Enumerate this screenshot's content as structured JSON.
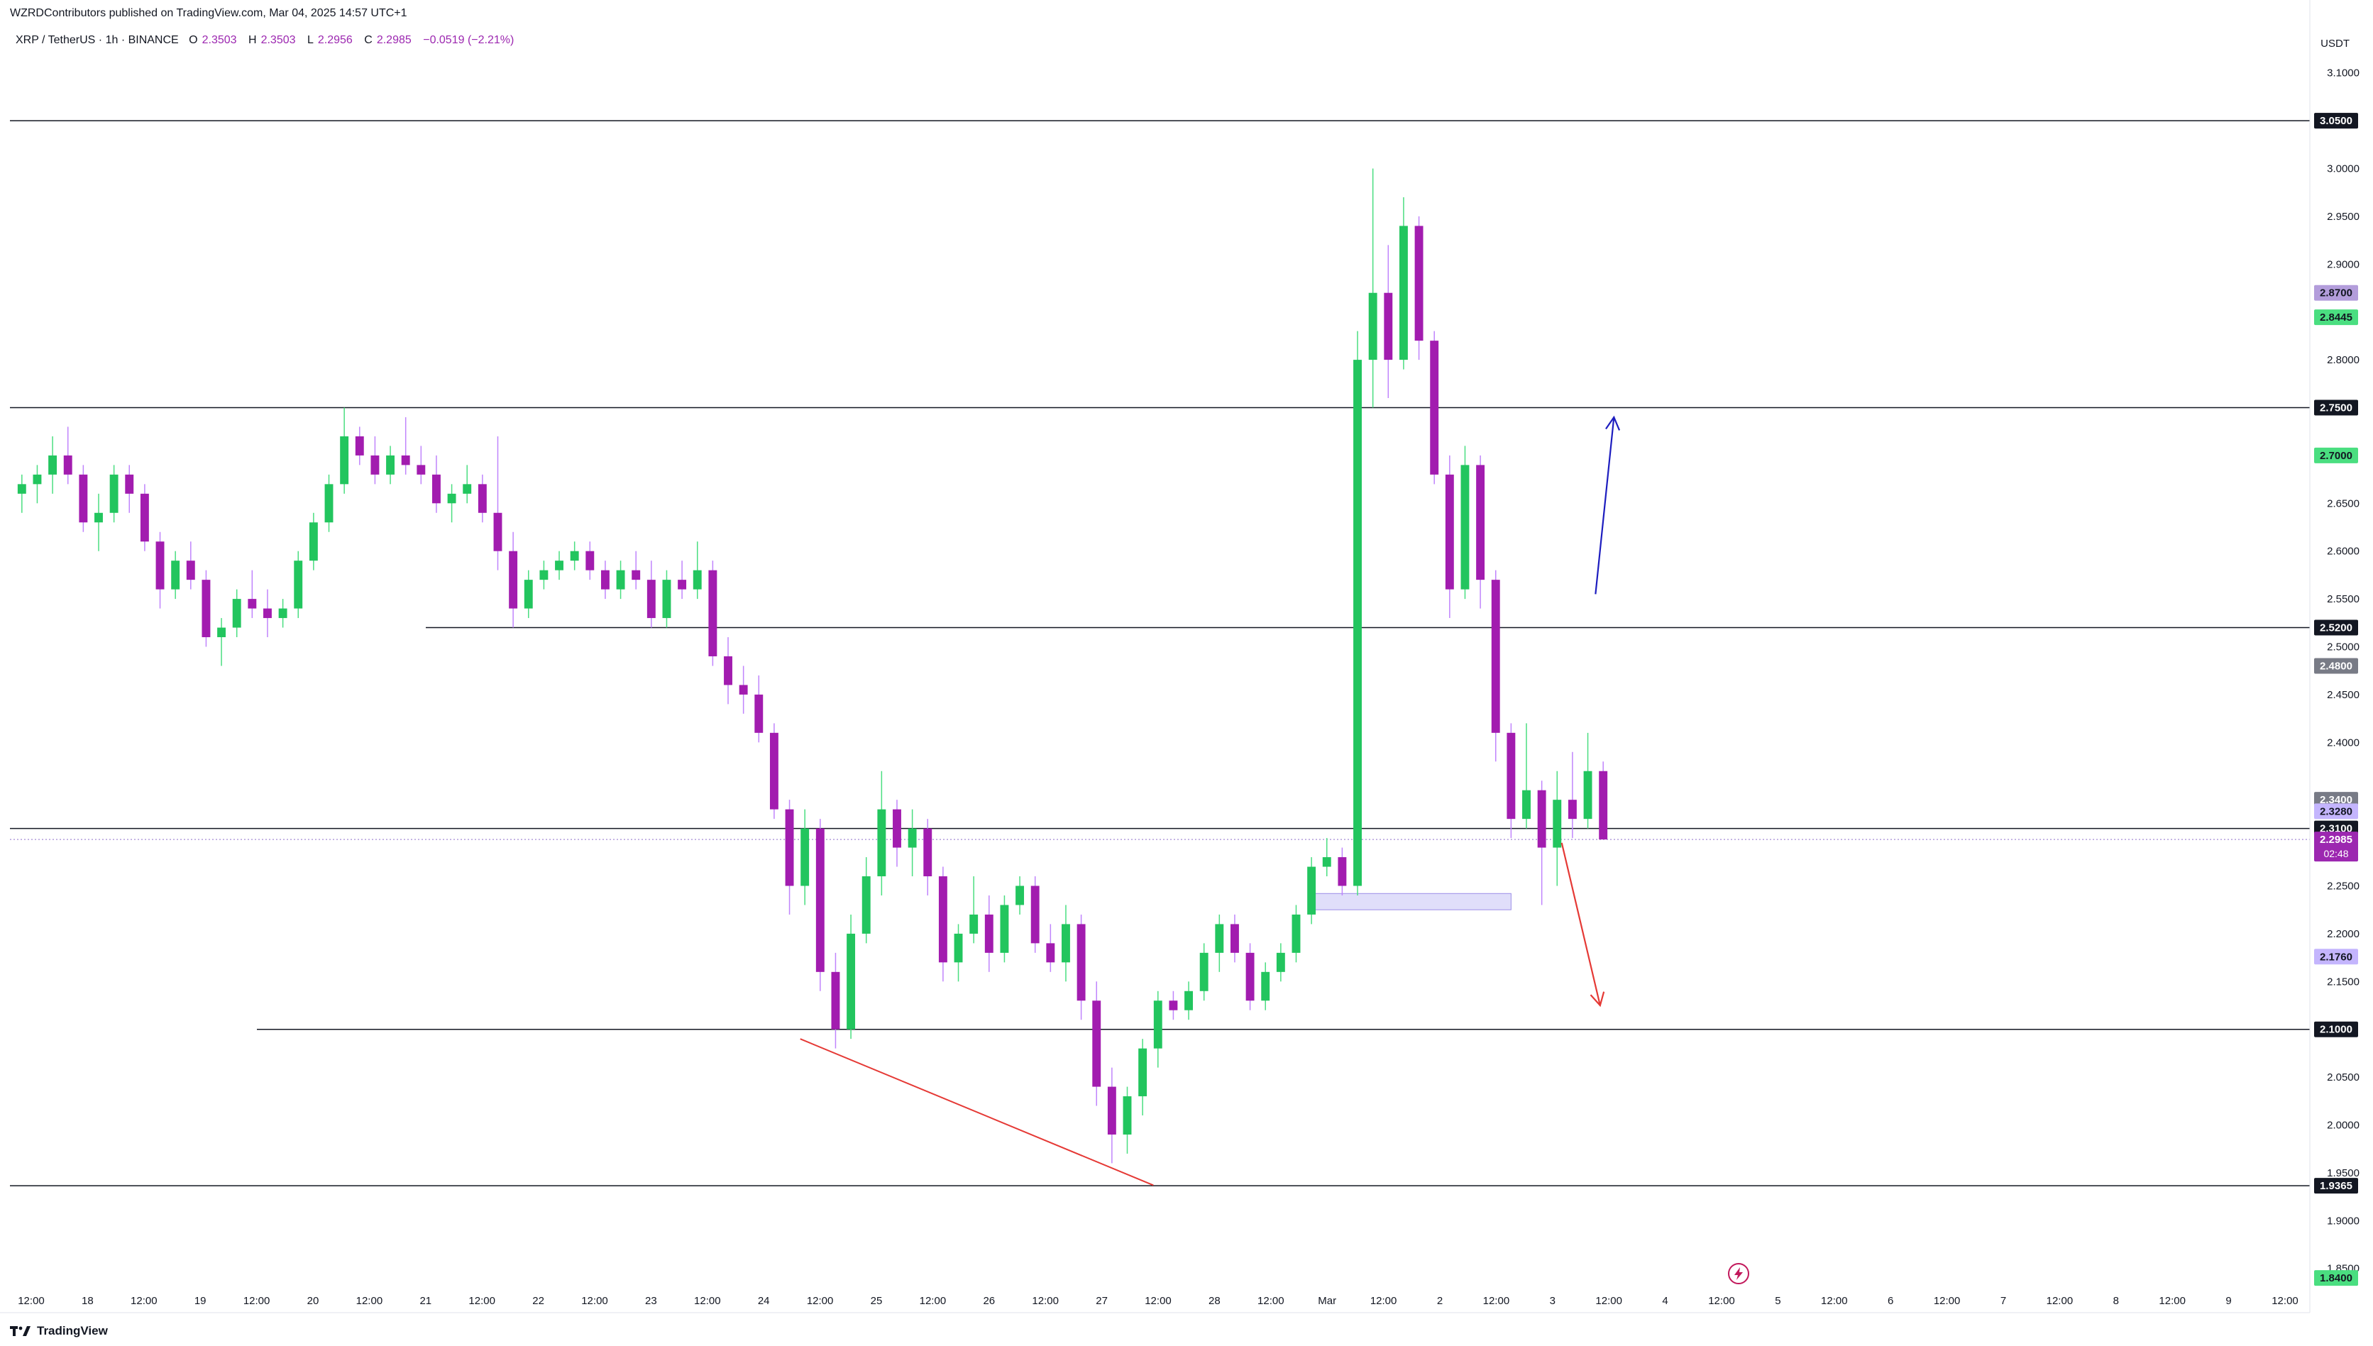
{
  "header": {
    "published": "WZRDContributors published on TradingView.com, Mar 04, 2025 14:57 UTC+1",
    "symbol": "XRP / TetherUS · 1h · BINANCE",
    "o_label": "O",
    "o_value": "2.3503",
    "h_label": "H",
    "h_value": "2.3503",
    "l_label": "L",
    "l_value": "2.2956",
    "c_label": "C",
    "c_value": "2.2985",
    "change": "−0.0519 (−2.21%)"
  },
  "footer": {
    "brand": "TradingView",
    "logo_icon": "tradingview-logo-icon"
  },
  "colors": {
    "up": "#22c55e",
    "down": "#a21caf",
    "wick": "#c084fc",
    "level_line": "#131722",
    "arrow_up": "#1d1dbf",
    "arrow_down": "#e53935",
    "trendline": "#e53935",
    "zone": "#c7c3f5"
  },
  "chart_data": {
    "type": "candlestick",
    "timeframe": "1h",
    "currency": "USDT",
    "ylim": [
      1.84,
      3.13
    ],
    "x_ticks": [
      "12:00",
      "18",
      "12:00",
      "19",
      "12:00",
      "20",
      "12:00",
      "21",
      "12:00",
      "22",
      "12:00",
      "23",
      "12:00",
      "24",
      "12:00",
      "25",
      "12:00",
      "26",
      "12:00",
      "27",
      "12:00",
      "28",
      "12:00",
      "Mar",
      "12:00",
      "2",
      "12:00",
      "3",
      "12:00",
      "4",
      "12:00",
      "5",
      "12:00",
      "6",
      "12:00",
      "7",
      "12:00",
      "8",
      "12:00",
      "9",
      "12:00"
    ],
    "y_ticks": [
      "3.1000",
      "3.0000",
      "2.9500",
      "2.9000",
      "2.8000",
      "2.6500",
      "2.6000",
      "2.5500",
      "2.5000",
      "2.4500",
      "2.4000",
      "2.2500",
      "2.2000",
      "2.1500",
      "2.0500",
      "2.0000",
      "1.9500",
      "1.9000",
      "1.8500"
    ],
    "horizontal_levels": [
      {
        "value": 3.05,
        "label": "3.0500"
      },
      {
        "value": 2.75,
        "label": "2.7500"
      },
      {
        "value": 2.52,
        "label": "2.5200"
      },
      {
        "value": 2.31,
        "label": "2.3100"
      },
      {
        "value": 2.1,
        "label": "2.1000"
      },
      {
        "value": 1.9365,
        "label": "1.9365"
      }
    ],
    "price_badges": [
      {
        "value": 3.05,
        "label": "3.0500",
        "color": "#787b86",
        "text_color": "#ffffff"
      },
      {
        "value": 2.87,
        "label": "2.8700",
        "color": "#b39ddb",
        "text_color": "#131722"
      },
      {
        "value": 2.8445,
        "label": "2.8445",
        "color": "#4ade80",
        "text_color": "#131722"
      },
      {
        "value": 2.7,
        "label": "2.7000",
        "color": "#4ade80",
        "text_color": "#131722"
      },
      {
        "value": 2.48,
        "label": "2.4800",
        "color": "#787b86",
        "text_color": "#ffffff"
      },
      {
        "value": 2.34,
        "label": "2.3400",
        "color": "#787b86",
        "text_color": "#ffffff"
      },
      {
        "value": 2.328,
        "label": "2.3280",
        "color": "#c4b5fd",
        "text_color": "#131722"
      },
      {
        "value": 2.176,
        "label": "2.1760",
        "color": "#c4b5fd",
        "text_color": "#131722"
      },
      {
        "value": 1.84,
        "label": "1.8400",
        "color": "#4ade80",
        "text_color": "#131722"
      }
    ],
    "last_price": {
      "value": 2.2985,
      "label": "2.2985",
      "countdown": "02:48",
      "color": "#9c27b0"
    },
    "candles": [
      [
        2.66,
        2.68,
        2.64,
        2.67
      ],
      [
        2.67,
        2.69,
        2.65,
        2.68
      ],
      [
        2.68,
        2.72,
        2.66,
        2.7
      ],
      [
        2.7,
        2.73,
        2.67,
        2.68
      ],
      [
        2.68,
        2.69,
        2.62,
        2.63
      ],
      [
        2.63,
        2.66,
        2.6,
        2.64
      ],
      [
        2.64,
        2.69,
        2.63,
        2.68
      ],
      [
        2.68,
        2.69,
        2.64,
        2.66
      ],
      [
        2.66,
        2.67,
        2.6,
        2.61
      ],
      [
        2.61,
        2.62,
        2.54,
        2.56
      ],
      [
        2.56,
        2.6,
        2.55,
        2.59
      ],
      [
        2.59,
        2.61,
        2.56,
        2.57
      ],
      [
        2.57,
        2.58,
        2.5,
        2.51
      ],
      [
        2.51,
        2.53,
        2.48,
        2.52
      ],
      [
        2.52,
        2.56,
        2.51,
        2.55
      ],
      [
        2.55,
        2.58,
        2.53,
        2.54
      ],
      [
        2.54,
        2.56,
        2.51,
        2.53
      ],
      [
        2.53,
        2.55,
        2.52,
        2.54
      ],
      [
        2.54,
        2.6,
        2.53,
        2.59
      ],
      [
        2.59,
        2.64,
        2.58,
        2.63
      ],
      [
        2.63,
        2.68,
        2.62,
        2.67
      ],
      [
        2.67,
        2.75,
        2.66,
        2.72
      ],
      [
        2.72,
        2.73,
        2.69,
        2.7
      ],
      [
        2.7,
        2.72,
        2.67,
        2.68
      ],
      [
        2.68,
        2.71,
        2.67,
        2.7
      ],
      [
        2.7,
        2.74,
        2.68,
        2.69
      ],
      [
        2.69,
        2.71,
        2.67,
        2.68
      ],
      [
        2.68,
        2.7,
        2.64,
        2.65
      ],
      [
        2.65,
        2.67,
        2.63,
        2.66
      ],
      [
        2.66,
        2.69,
        2.65,
        2.67
      ],
      [
        2.67,
        2.68,
        2.63,
        2.64
      ],
      [
        2.64,
        2.72,
        2.58,
        2.6
      ],
      [
        2.6,
        2.62,
        2.52,
        2.54
      ],
      [
        2.54,
        2.58,
        2.53,
        2.57
      ],
      [
        2.57,
        2.59,
        2.56,
        2.58
      ],
      [
        2.58,
        2.6,
        2.57,
        2.59
      ],
      [
        2.59,
        2.61,
        2.58,
        2.6
      ],
      [
        2.6,
        2.61,
        2.57,
        2.58
      ],
      [
        2.58,
        2.59,
        2.55,
        2.56
      ],
      [
        2.56,
        2.59,
        2.55,
        2.58
      ],
      [
        2.58,
        2.6,
        2.56,
        2.57
      ],
      [
        2.57,
        2.59,
        2.52,
        2.53
      ],
      [
        2.53,
        2.58,
        2.52,
        2.57
      ],
      [
        2.57,
        2.59,
        2.55,
        2.56
      ],
      [
        2.56,
        2.61,
        2.55,
        2.58
      ],
      [
        2.58,
        2.59,
        2.48,
        2.49
      ],
      [
        2.49,
        2.51,
        2.44,
        2.46
      ],
      [
        2.46,
        2.48,
        2.43,
        2.45
      ],
      [
        2.45,
        2.47,
        2.4,
        2.41
      ],
      [
        2.41,
        2.42,
        2.32,
        2.33
      ],
      [
        2.33,
        2.34,
        2.22,
        2.25
      ],
      [
        2.25,
        2.33,
        2.23,
        2.31
      ],
      [
        2.31,
        2.32,
        2.14,
        2.16
      ],
      [
        2.16,
        2.18,
        2.08,
        2.1
      ],
      [
        2.1,
        2.22,
        2.09,
        2.2
      ],
      [
        2.2,
        2.28,
        2.19,
        2.26
      ],
      [
        2.26,
        2.37,
        2.24,
        2.33
      ],
      [
        2.33,
        2.34,
        2.27,
        2.29
      ],
      [
        2.29,
        2.33,
        2.26,
        2.31
      ],
      [
        2.31,
        2.32,
        2.24,
        2.26
      ],
      [
        2.26,
        2.27,
        2.15,
        2.17
      ],
      [
        2.17,
        2.21,
        2.15,
        2.2
      ],
      [
        2.2,
        2.26,
        2.19,
        2.22
      ],
      [
        2.22,
        2.24,
        2.16,
        2.18
      ],
      [
        2.18,
        2.24,
        2.17,
        2.23
      ],
      [
        2.23,
        2.26,
        2.22,
        2.25
      ],
      [
        2.25,
        2.26,
        2.18,
        2.19
      ],
      [
        2.19,
        2.21,
        2.16,
        2.17
      ],
      [
        2.17,
        2.23,
        2.15,
        2.21
      ],
      [
        2.21,
        2.22,
        2.11,
        2.13
      ],
      [
        2.13,
        2.15,
        2.02,
        2.04
      ],
      [
        2.04,
        2.06,
        1.96,
        1.99
      ],
      [
        1.99,
        2.04,
        1.97,
        2.03
      ],
      [
        2.03,
        2.09,
        2.01,
        2.08
      ],
      [
        2.08,
        2.14,
        2.06,
        2.13
      ],
      [
        2.13,
        2.14,
        2.11,
        2.12
      ],
      [
        2.12,
        2.15,
        2.11,
        2.14
      ],
      [
        2.14,
        2.19,
        2.13,
        2.18
      ],
      [
        2.18,
        2.22,
        2.16,
        2.21
      ],
      [
        2.21,
        2.22,
        2.17,
        2.18
      ],
      [
        2.18,
        2.19,
        2.12,
        2.13
      ],
      [
        2.13,
        2.17,
        2.12,
        2.16
      ],
      [
        2.16,
        2.19,
        2.15,
        2.18
      ],
      [
        2.18,
        2.23,
        2.17,
        2.22
      ],
      [
        2.22,
        2.28,
        2.21,
        2.27
      ],
      [
        2.27,
        2.3,
        2.26,
        2.28
      ],
      [
        2.28,
        2.29,
        2.24,
        2.25
      ],
      [
        2.25,
        2.83,
        2.24,
        2.8
      ],
      [
        2.8,
        3.0,
        2.75,
        2.87
      ],
      [
        2.87,
        2.92,
        2.76,
        2.8
      ],
      [
        2.8,
        2.97,
        2.79,
        2.94
      ],
      [
        2.94,
        2.95,
        2.8,
        2.82
      ],
      [
        2.82,
        2.83,
        2.67,
        2.68
      ],
      [
        2.68,
        2.7,
        2.53,
        2.56
      ],
      [
        2.56,
        2.71,
        2.55,
        2.69
      ],
      [
        2.69,
        2.7,
        2.54,
        2.57
      ],
      [
        2.57,
        2.58,
        2.38,
        2.41
      ],
      [
        2.41,
        2.42,
        2.3,
        2.32
      ],
      [
        2.32,
        2.42,
        2.31,
        2.35
      ],
      [
        2.35,
        2.36,
        2.23,
        2.29
      ],
      [
        2.29,
        2.37,
        2.25,
        2.34
      ],
      [
        2.34,
        2.39,
        2.3,
        2.32
      ],
      [
        2.32,
        2.41,
        2.31,
        2.37
      ],
      [
        2.37,
        2.38,
        2.3,
        2.2985
      ]
    ],
    "annotations": {
      "zone": {
        "x_from": 84.5,
        "x_to": 97.5,
        "y_from": 2.225,
        "y_to": 2.242
      },
      "trendline": {
        "from": [
          51.2,
          2.09
        ],
        "to": [
          74.2,
          1.937
        ]
      },
      "arrow_up": {
        "from": [
          103.0,
          2.555
        ],
        "to": [
          104.2,
          2.74
        ]
      },
      "arrow_down": {
        "from": [
          100.8,
          2.295
        ],
        "to": [
          103.3,
          2.125
        ]
      },
      "lightning_icon": "lightning-bolt-icon"
    }
  }
}
